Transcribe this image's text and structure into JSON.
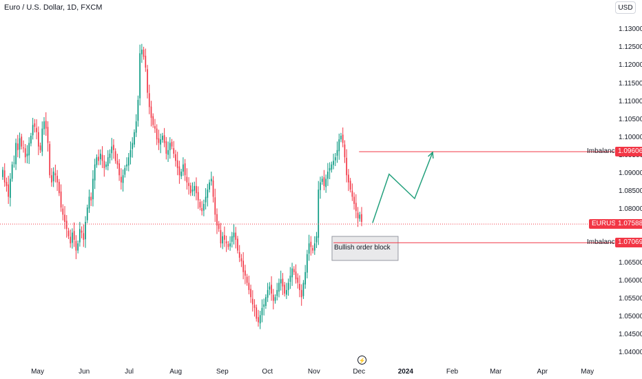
{
  "header": {
    "symbol_title": "Euro / U.S. Dollar, 1D, FXCM",
    "currency_button": "USD"
  },
  "markers": {
    "symbol_label": "EURUSD",
    "imbalance_label": "Imbalance",
    "order_block_label": "Bullish order block",
    "event_icon": "lightning-icon"
  },
  "colors": {
    "up": "#089981",
    "down": "#f23645",
    "level_line": "#f23645",
    "projection": "#22a07c",
    "order_block_fill": "#e9e9eb",
    "order_block_border": "#9598a1"
  },
  "chart_data": {
    "type": "candlestick",
    "ylim": [
      1.0375,
      1.1345
    ],
    "y_ticks": [
      "1.13000",
      "1.12500",
      "1.12000",
      "1.11500",
      "1.11000",
      "1.10500",
      "1.10000",
      "1.09500",
      "1.09000",
      "1.08500",
      "1.08000",
      "1.07500",
      "1.07000",
      "1.06500",
      "1.06000",
      "1.05500",
      "1.05000",
      "1.04500",
      "1.04000"
    ],
    "x_ticks": [
      {
        "label": "May",
        "x": "2023-05-01"
      },
      {
        "label": "Jun",
        "x": "2023-06-01"
      },
      {
        "label": "Jul",
        "x": "2023-07-01"
      },
      {
        "label": "Aug",
        "x": "2023-08-01"
      },
      {
        "label": "Sep",
        "x": "2023-09-01"
      },
      {
        "label": "Oct",
        "x": "2023-10-01"
      },
      {
        "label": "Nov",
        "x": "2023-11-01"
      },
      {
        "label": "Dec",
        "x": "2023-12-01"
      },
      {
        "label": "2024",
        "x": "2024-01-01",
        "bold": true
      },
      {
        "label": "Feb",
        "x": "2024-02-01"
      },
      {
        "label": "Mar",
        "x": "2024-03-01"
      },
      {
        "label": "Apr",
        "x": "2024-04-01"
      },
      {
        "label": "May",
        "x": "2024-05-01"
      }
    ],
    "date_range": [
      "2023-04-06",
      "2024-05-19"
    ],
    "closes": [
      1.091,
      1.0875,
      1.0865,
      1.0835,
      1.0885,
      1.0925,
      1.093,
      1.0985,
      1.0965,
      1.0998,
      1.0975,
      1.097,
      1.0945,
      1.0955,
      1.0985,
      1.1005,
      1.1035,
      1.103,
      1.1015,
      1.0975,
      1.0965,
      1.1025,
      1.1045,
      1.1025,
      1.0985,
      1.0895,
      1.0875,
      1.0905,
      1.0895,
      1.0875,
      1.0845,
      1.0805,
      1.0785,
      1.0765,
      1.0745,
      1.0725,
      1.0705,
      1.0735,
      1.0715,
      1.0685,
      1.0705,
      1.0745,
      1.0735,
      1.0715,
      1.0765,
      1.0805,
      1.0835,
      1.0825,
      1.0885,
      1.0925,
      1.0945,
      1.0935,
      1.0955,
      1.0935,
      1.0915,
      1.0925,
      1.0945,
      1.0955,
      1.0975,
      1.0965,
      1.0935,
      1.0925,
      1.0895,
      1.0875,
      1.0895,
      1.0915,
      1.0925,
      1.0945,
      1.0965,
      1.0985,
      1.1015,
      1.1045,
      1.1105,
      1.1235,
      1.1245,
      1.1225,
      1.1195,
      1.1125,
      1.1085,
      1.1055,
      1.1035,
      1.1025,
      1.0995,
      1.0985,
      1.0995,
      1.1005,
      1.0985,
      1.0955,
      1.0965,
      1.0985,
      1.0975,
      1.0955,
      1.0935,
      1.0915,
      1.0895,
      1.0905,
      1.0925,
      1.0895,
      1.0875,
      1.0865,
      1.0845,
      1.0855,
      1.0865,
      1.0845,
      1.0825,
      1.0805,
      1.0795,
      1.0815,
      1.0835,
      1.0855,
      1.0875,
      1.0885,
      1.0835,
      1.0785,
      1.0755,
      1.0745,
      1.0705,
      1.0725,
      1.0715,
      1.0705,
      1.0695,
      1.0705,
      1.0725,
      1.0735,
      1.0715,
      1.0685,
      1.0665,
      1.0655,
      1.0625,
      1.0615,
      1.0595,
      1.0575,
      1.0555,
      1.0535,
      1.0525,
      1.0495,
      1.0485,
      1.0505,
      1.0525,
      1.0535,
      1.0555,
      1.0575,
      1.0585,
      1.0565,
      1.0545,
      1.0555,
      1.0575,
      1.0595,
      1.0605,
      1.0585,
      1.0565,
      1.0575,
      1.0595,
      1.0615,
      1.0635,
      1.0625,
      1.0605,
      1.0595,
      1.0575,
      1.0555,
      1.0595,
      1.0625,
      1.0675,
      1.0705,
      1.0695,
      1.0685,
      1.0705,
      1.0725,
      1.0855,
      1.0875,
      1.0885,
      1.0865,
      1.0885,
      1.0905,
      1.0915,
      1.0925,
      1.0935,
      1.0945,
      1.0965,
      1.0995,
      1.1005,
      1.0985,
      1.0945,
      1.0895,
      1.0875,
      1.0855,
      1.0835,
      1.0815,
      1.0795,
      1.0775,
      1.0785,
      1.0765
    ],
    "imbalance_levels": [
      1.09606,
      1.07069
    ],
    "imbalance_labels": [
      "1.09606",
      "1.07069"
    ],
    "current_price": 1.07588,
    "current_price_label": "1.07588",
    "order_block": {
      "x0": "2023-11-13",
      "x1": "2023-12-27",
      "y0": 1.07245,
      "y1": 1.06575
    },
    "projection": [
      {
        "x": "2023-12-10",
        "y": 1.0762
      },
      {
        "x": "2023-12-21",
        "y": 1.0898
      },
      {
        "x": "2024-01-07",
        "y": 1.083
      },
      {
        "x": "2024-01-19",
        "y": 1.0959
      }
    ]
  }
}
